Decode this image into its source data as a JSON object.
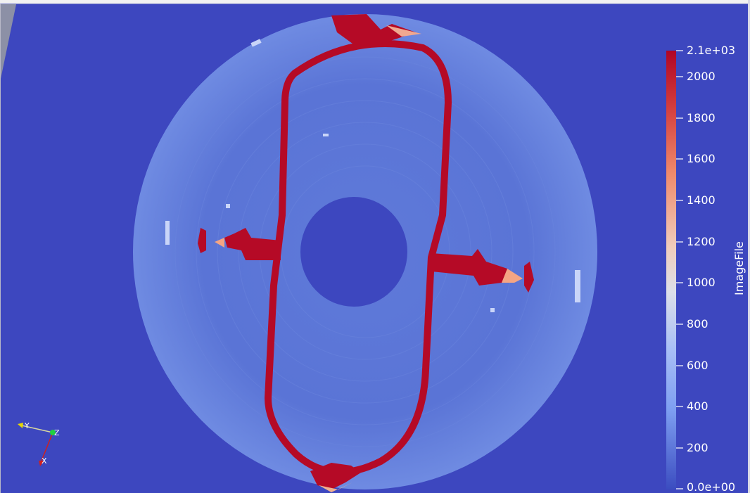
{
  "colors": {
    "background": "#3d47bf",
    "ring": "#5b78da",
    "hot": "#b50a26",
    "mid": "#e87a5e",
    "white": "#ffffff"
  },
  "colorbar": {
    "title": "ImageFile",
    "max_label": "2.1e+03",
    "min_label": "0.0e+00",
    "ticks": [
      "2000",
      "1800",
      "1600",
      "1400",
      "1200",
      "1000",
      "800",
      "600",
      "400",
      "200"
    ]
  },
  "axes_widget": {
    "x": "X",
    "y": "Y",
    "z": "Z"
  }
}
